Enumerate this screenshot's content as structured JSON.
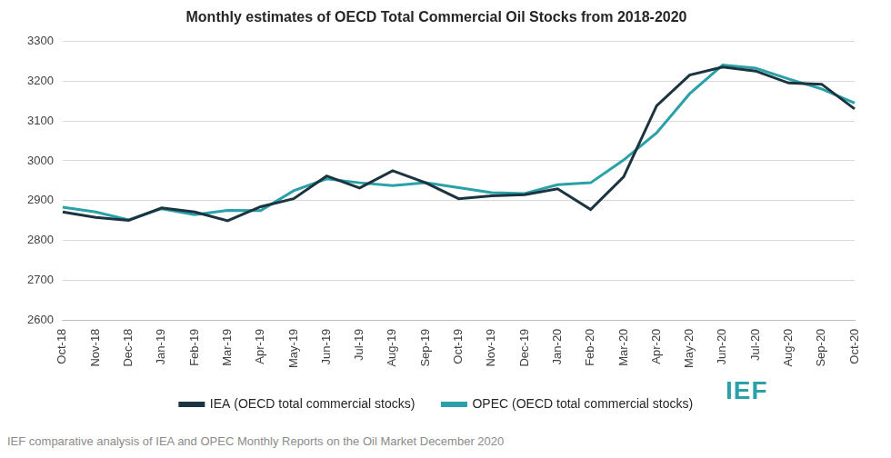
{
  "chart_data": {
    "type": "line",
    "title": "Monthly estimates of OECD Total Commercial Oil Stocks from 2018-2020",
    "categories": [
      "Oct-18",
      "Nov-18",
      "Dec-18",
      "Jan-19",
      "Feb-19",
      "Mar-19",
      "Apr-19",
      "May-19",
      "Jun-19",
      "Jul-19",
      "Aug-19",
      "Sep-19",
      "Oct-19",
      "Nov-19",
      "Dec-19",
      "Jan-20",
      "Feb-20",
      "Mar-20",
      "Apr-20",
      "May-20",
      "Jun-20",
      "Jul-20",
      "Aug-20",
      "Sep-20",
      "Oct-20"
    ],
    "series": [
      {
        "name": "IEA (OECD total commercial stocks)",
        "color": "#1b3440",
        "values": [
          2872,
          2858,
          2851,
          2882,
          2872,
          2850,
          2885,
          2905,
          2962,
          2932,
          2975,
          2945,
          2905,
          2912,
          2915,
          2930,
          2878,
          2960,
          3138,
          3215,
          3235,
          3225,
          3195,
          3192,
          3130
        ]
      },
      {
        "name": "OPEC (OECD total commercial stocks)",
        "color": "#2aa0a8",
        "values": [
          2884,
          2872,
          2852,
          2880,
          2865,
          2876,
          2875,
          2925,
          2955,
          2945,
          2938,
          2945,
          2933,
          2920,
          2918,
          2940,
          2945,
          3002,
          3070,
          3168,
          3240,
          3232,
          3205,
          3180,
          3145
        ]
      }
    ],
    "ylim": [
      2600,
      3300
    ],
    "yticks": [
      2600,
      2700,
      2800,
      2900,
      3000,
      3100,
      3200,
      3300
    ],
    "grid": true,
    "legend": "bottom",
    "source": "IEF comparative analysis of IEA and OPEC Monthly Reports on the Oil Market December 2020",
    "logo": "IEF"
  }
}
